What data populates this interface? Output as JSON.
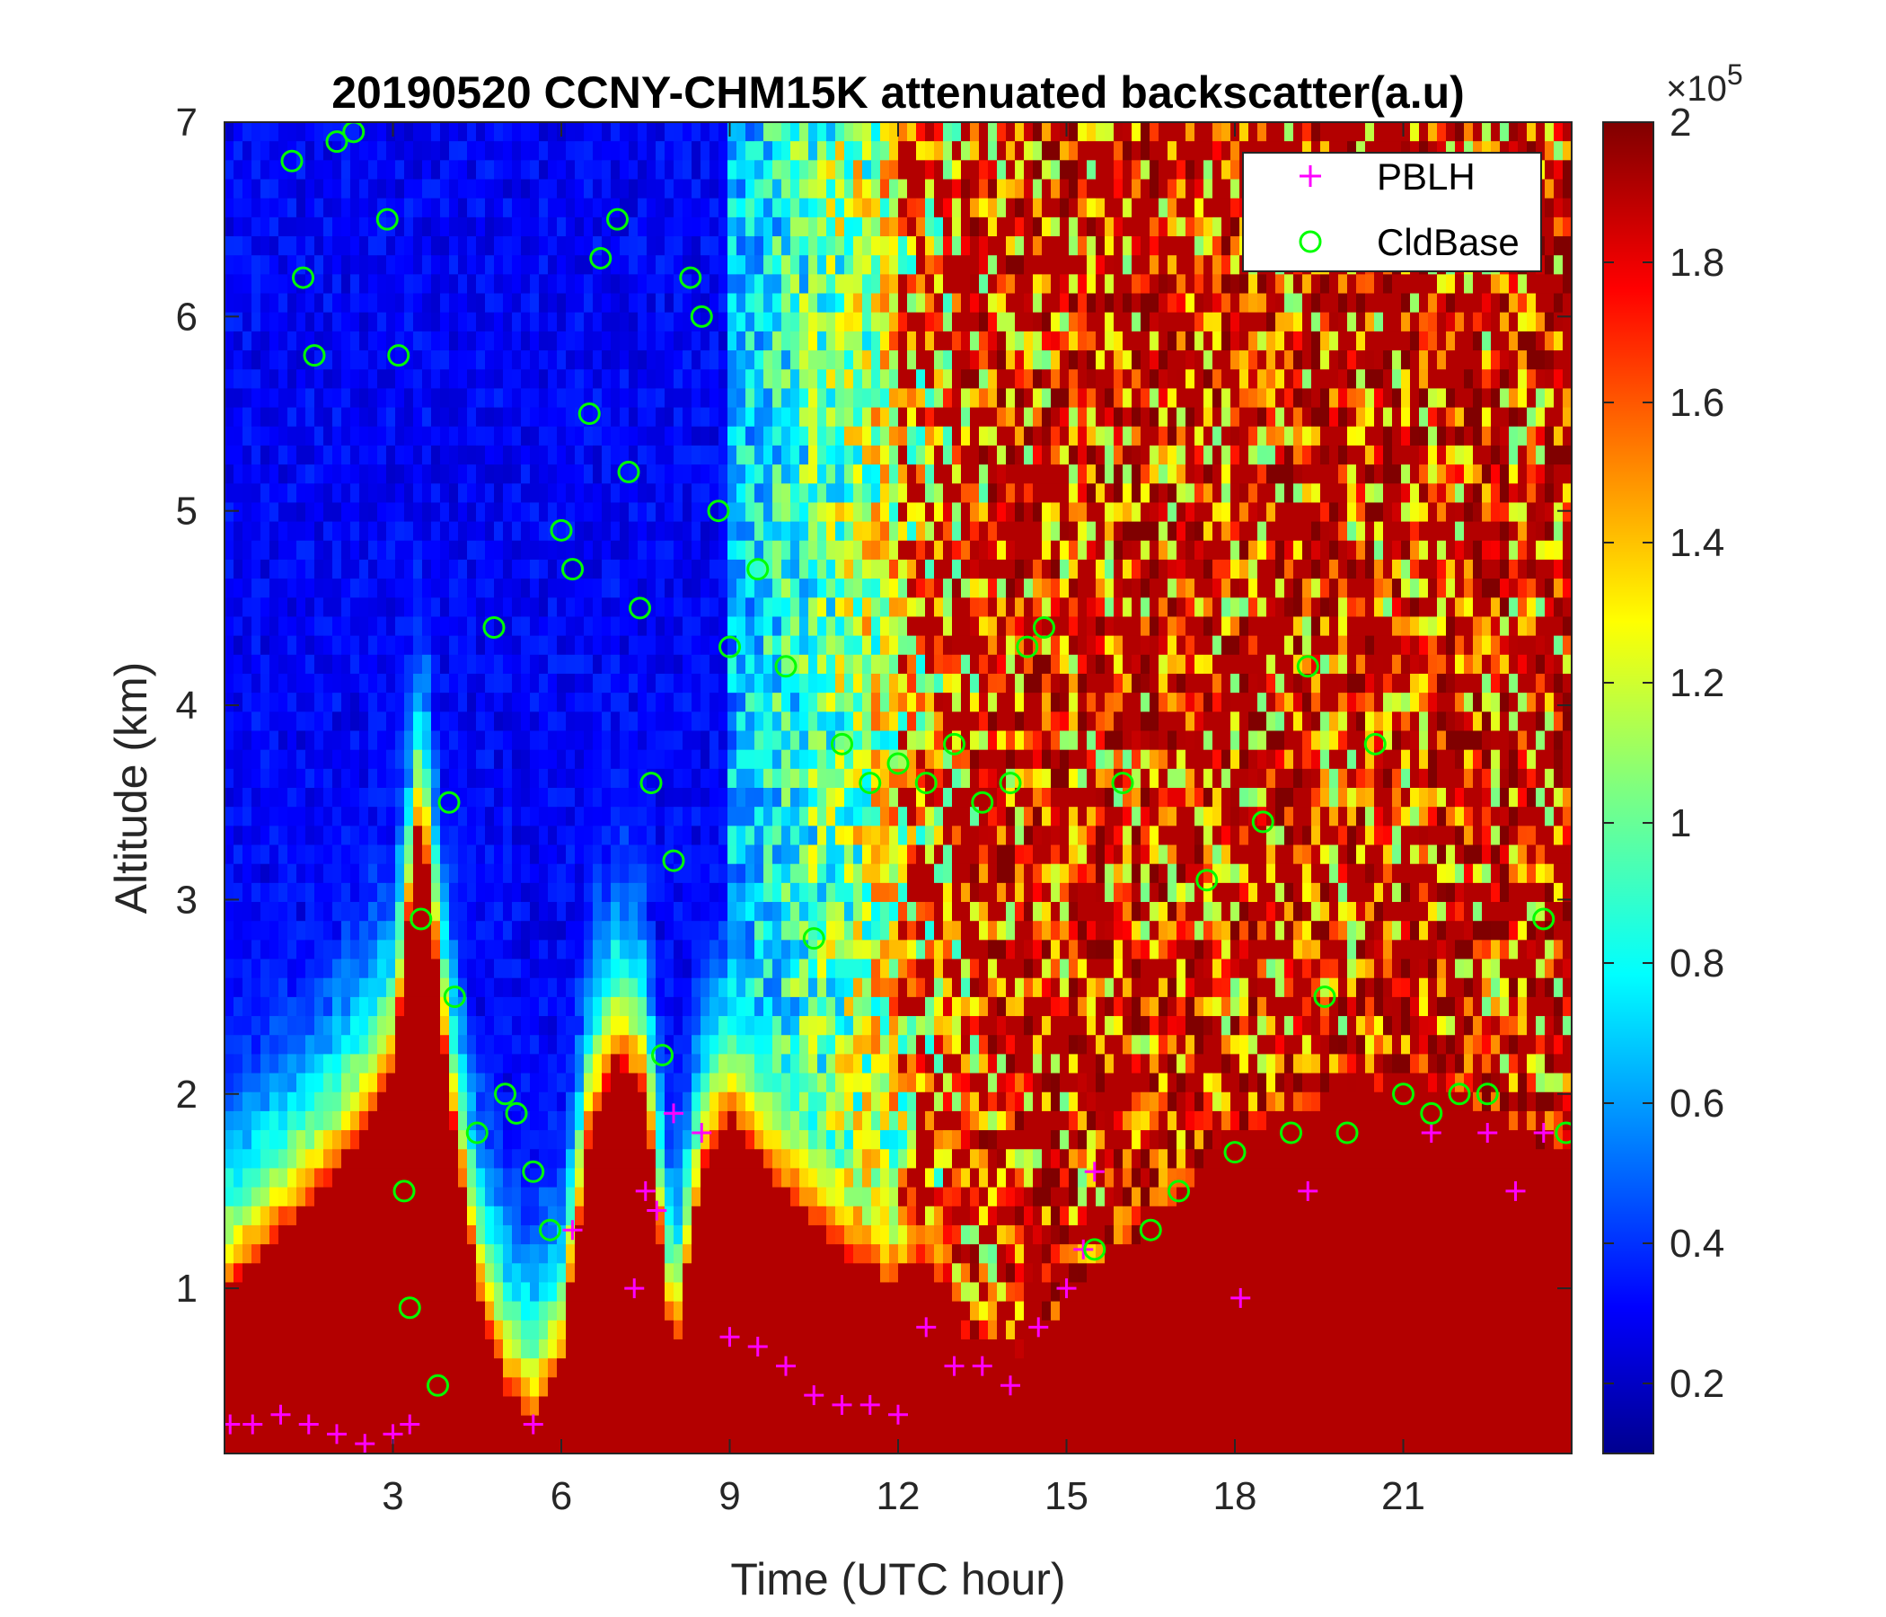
{
  "chart_data": {
    "type": "heatmap",
    "title": "20190520 CCNY-CHM15K attenuated backscatter(a.u)",
    "xlabel": "Time (UTC hour)",
    "ylabel": "Altitude (km)",
    "xlim": [
      0,
      24
    ],
    "ylim": [
      0.15,
      7
    ],
    "xticks": [
      3,
      6,
      9,
      12,
      15,
      18,
      21
    ],
    "xtick_labels": [
      "3",
      "6",
      "9",
      "12",
      "15",
      "18",
      "21"
    ],
    "yticks": [
      1,
      2,
      3,
      4,
      5,
      6,
      7
    ],
    "ytick_labels": [
      "1",
      "2",
      "3",
      "4",
      "5",
      "6",
      "7"
    ],
    "colormap": "jet",
    "colorbar": {
      "range": [
        0.1,
        2
      ],
      "ticks": [
        0.2,
        0.4,
        0.6,
        0.8,
        1,
        1.2,
        1.4,
        1.6,
        1.8,
        2
      ],
      "tick_labels": [
        "0.2",
        "0.4",
        "0.6",
        "0.8",
        "1",
        "1.2",
        "1.4",
        "1.6",
        "1.8",
        "2"
      ],
      "multiplier_prefix": "×10",
      "multiplier_exponent": "5"
    },
    "legend": {
      "placement": "top-right",
      "entries": [
        {
          "label": "PBLH",
          "marker": "+",
          "color": "#ff00ff"
        },
        {
          "label": "CldBase",
          "marker": "o",
          "color": "#00ff00"
        }
      ]
    },
    "series": [
      {
        "name": "PBLH",
        "marker": "+",
        "color": "#ff00ff",
        "x": [
          0.1,
          0.5,
          1.0,
          1.5,
          2.0,
          2.5,
          3.0,
          3.3,
          5.5,
          6.2,
          7.3,
          7.5,
          7.7,
          8.0,
          8.5,
          9.0,
          9.5,
          10.0,
          10.5,
          11.0,
          11.5,
          12.0,
          12.5,
          13.0,
          13.5,
          14.0,
          14.5,
          15.0,
          15.3,
          15.5,
          18.1,
          19.3,
          21.5,
          22.5,
          23.0,
          23.5
        ],
        "y": [
          0.3,
          0.3,
          0.35,
          0.3,
          0.25,
          0.2,
          0.25,
          0.3,
          0.3,
          1.3,
          1.0,
          1.5,
          1.4,
          1.9,
          1.8,
          0.75,
          0.7,
          0.6,
          0.45,
          0.4,
          0.4,
          0.35,
          0.8,
          0.6,
          0.6,
          0.5,
          0.8,
          1.0,
          1.2,
          1.6,
          0.95,
          1.5,
          1.8,
          1.8,
          1.5,
          1.8
        ]
      },
      {
        "name": "CldBase",
        "marker": "o",
        "color": "#00ff00",
        "x": [
          1.2,
          1.4,
          1.6,
          2.0,
          2.3,
          2.9,
          3.1,
          3.2,
          3.3,
          3.5,
          3.8,
          4.0,
          4.1,
          4.5,
          4.8,
          5.0,
          5.2,
          5.5,
          5.8,
          6.0,
          6.2,
          6.5,
          6.7,
          7.0,
          7.2,
          7.4,
          7.6,
          7.8,
          8.0,
          8.3,
          8.5,
          8.8,
          9.0,
          9.5,
          10.0,
          10.5,
          11.0,
          11.5,
          12.0,
          12.5,
          13.0,
          13.5,
          14.0,
          14.3,
          14.6,
          15.5,
          16.0,
          16.5,
          17.0,
          17.5,
          18.0,
          18.5,
          19.0,
          19.3,
          19.6,
          20.0,
          20.5,
          21.0,
          21.5,
          22.0,
          22.5,
          23.5,
          23.9
        ],
        "y": [
          6.8,
          6.2,
          5.8,
          6.9,
          6.95,
          6.5,
          5.8,
          1.5,
          0.9,
          2.9,
          0.5,
          3.5,
          2.5,
          1.8,
          4.4,
          2.0,
          1.9,
          1.6,
          1.3,
          4.9,
          4.7,
          5.5,
          6.3,
          6.5,
          5.2,
          4.5,
          3.6,
          2.2,
          3.2,
          6.2,
          6.0,
          5.0,
          4.3,
          4.7,
          4.2,
          2.8,
          3.8,
          3.6,
          3.7,
          3.6,
          3.8,
          3.5,
          3.6,
          4.3,
          4.4,
          1.2,
          3.6,
          1.3,
          1.5,
          3.1,
          1.7,
          3.4,
          1.8,
          4.2,
          2.5,
          1.8,
          3.8,
          2.0,
          1.9,
          2.0,
          2.0,
          2.9,
          1.8
        ]
      }
    ]
  }
}
